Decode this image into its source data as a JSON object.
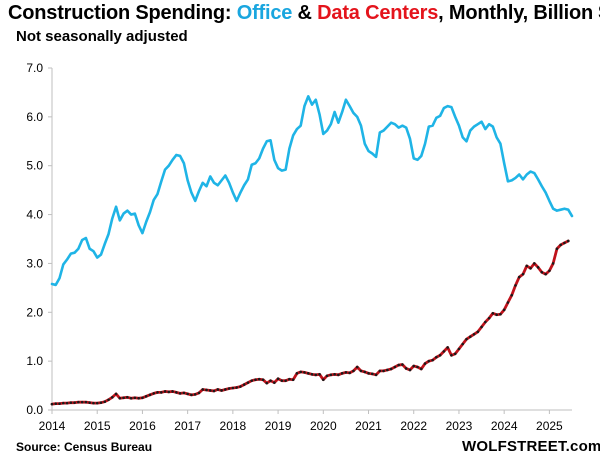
{
  "header": {
    "title_prefix": "Construction Spending: ",
    "office": "Office",
    "amp": " & ",
    "datacenters": "Data Centers",
    "title_suffix": ", Monthly, Billion $",
    "subtitle": "Not seasonally adjusted"
  },
  "footer": {
    "source": "Source: Census Bureau",
    "brand": "WOLFSTREET.com"
  },
  "colors": {
    "office": "#1fb4e6",
    "datacenters": "#c0121b",
    "datacenters_dots": "#1a1a1a",
    "axis": "#bfbfbf",
    "title_office": "#1aa6df",
    "title_datacenters": "#e4141c"
  },
  "chart_data": {
    "type": "line",
    "title": "Construction Spending: Office & Data Centers, Monthly, Billion $",
    "subtitle": "Not seasonally adjusted",
    "xlabel": "",
    "ylabel": "",
    "xlim": [
      2014.0,
      2025.5
    ],
    "ylim": [
      0.0,
      7.0
    ],
    "grid": false,
    "y_ticks": [
      "0.0",
      "1.0",
      "2.0",
      "3.0",
      "4.0",
      "5.0",
      "6.0",
      "7.0"
    ],
    "x_ticks": [
      "2014",
      "2015",
      "2016",
      "2017",
      "2018",
      "2019",
      "2020",
      "2021",
      "2022",
      "2023",
      "2024",
      "2025"
    ],
    "series": [
      {
        "name": "Office",
        "points": [
          [
            2014.0,
            2.58
          ],
          [
            2014.083,
            2.56
          ],
          [
            2014.167,
            2.7
          ],
          [
            2014.25,
            2.98
          ],
          [
            2014.333,
            3.08
          ],
          [
            2014.417,
            3.2
          ],
          [
            2014.5,
            3.22
          ],
          [
            2014.583,
            3.3
          ],
          [
            2014.667,
            3.48
          ],
          [
            2014.75,
            3.52
          ],
          [
            2014.833,
            3.3
          ],
          [
            2014.917,
            3.25
          ],
          [
            2015.0,
            3.12
          ],
          [
            2015.083,
            3.18
          ],
          [
            2015.167,
            3.4
          ],
          [
            2015.25,
            3.6
          ],
          [
            2015.333,
            3.92
          ],
          [
            2015.417,
            4.16
          ],
          [
            2015.5,
            3.88
          ],
          [
            2015.583,
            4.02
          ],
          [
            2015.667,
            4.08
          ],
          [
            2015.75,
            4.0
          ],
          [
            2015.833,
            4.02
          ],
          [
            2015.917,
            3.78
          ],
          [
            2016.0,
            3.62
          ],
          [
            2016.083,
            3.85
          ],
          [
            2016.167,
            4.05
          ],
          [
            2016.25,
            4.3
          ],
          [
            2016.333,
            4.42
          ],
          [
            2016.417,
            4.68
          ],
          [
            2016.5,
            4.92
          ],
          [
            2016.583,
            5.0
          ],
          [
            2016.667,
            5.12
          ],
          [
            2016.75,
            5.22
          ],
          [
            2016.833,
            5.2
          ],
          [
            2016.917,
            5.05
          ],
          [
            2017.0,
            4.7
          ],
          [
            2017.083,
            4.45
          ],
          [
            2017.167,
            4.28
          ],
          [
            2017.25,
            4.48
          ],
          [
            2017.333,
            4.65
          ],
          [
            2017.417,
            4.58
          ],
          [
            2017.5,
            4.78
          ],
          [
            2017.583,
            4.65
          ],
          [
            2017.667,
            4.6
          ],
          [
            2017.75,
            4.7
          ],
          [
            2017.833,
            4.8
          ],
          [
            2017.917,
            4.65
          ],
          [
            2018.0,
            4.45
          ],
          [
            2018.083,
            4.28
          ],
          [
            2018.167,
            4.45
          ],
          [
            2018.25,
            4.6
          ],
          [
            2018.333,
            4.72
          ],
          [
            2018.417,
            5.02
          ],
          [
            2018.5,
            5.05
          ],
          [
            2018.583,
            5.15
          ],
          [
            2018.667,
            5.35
          ],
          [
            2018.75,
            5.5
          ],
          [
            2018.833,
            5.52
          ],
          [
            2018.917,
            5.12
          ],
          [
            2019.0,
            4.95
          ],
          [
            2019.083,
            4.9
          ],
          [
            2019.167,
            4.92
          ],
          [
            2019.25,
            5.35
          ],
          [
            2019.333,
            5.62
          ],
          [
            2019.417,
            5.75
          ],
          [
            2019.5,
            5.82
          ],
          [
            2019.583,
            6.22
          ],
          [
            2019.667,
            6.42
          ],
          [
            2019.75,
            6.25
          ],
          [
            2019.833,
            6.35
          ],
          [
            2019.917,
            6.05
          ],
          [
            2020.0,
            5.65
          ],
          [
            2020.083,
            5.72
          ],
          [
            2020.167,
            5.85
          ],
          [
            2020.25,
            6.1
          ],
          [
            2020.333,
            5.88
          ],
          [
            2020.417,
            6.1
          ],
          [
            2020.5,
            6.35
          ],
          [
            2020.583,
            6.22
          ],
          [
            2020.667,
            6.08
          ],
          [
            2020.75,
            6.0
          ],
          [
            2020.833,
            5.82
          ],
          [
            2020.917,
            5.45
          ],
          [
            2021.0,
            5.3
          ],
          [
            2021.083,
            5.25
          ],
          [
            2021.167,
            5.18
          ],
          [
            2021.25,
            5.68
          ],
          [
            2021.333,
            5.72
          ],
          [
            2021.417,
            5.8
          ],
          [
            2021.5,
            5.88
          ],
          [
            2021.583,
            5.85
          ],
          [
            2021.667,
            5.78
          ],
          [
            2021.75,
            5.82
          ],
          [
            2021.833,
            5.78
          ],
          [
            2021.917,
            5.55
          ],
          [
            2022.0,
            5.15
          ],
          [
            2022.083,
            5.12
          ],
          [
            2022.167,
            5.2
          ],
          [
            2022.25,
            5.45
          ],
          [
            2022.333,
            5.8
          ],
          [
            2022.417,
            5.82
          ],
          [
            2022.5,
            5.98
          ],
          [
            2022.583,
            6.02
          ],
          [
            2022.667,
            6.18
          ],
          [
            2022.75,
            6.22
          ],
          [
            2022.833,
            6.2
          ],
          [
            2022.917,
            6.0
          ],
          [
            2023.0,
            5.82
          ],
          [
            2023.083,
            5.58
          ],
          [
            2023.167,
            5.5
          ],
          [
            2023.25,
            5.72
          ],
          [
            2023.333,
            5.8
          ],
          [
            2023.417,
            5.85
          ],
          [
            2023.5,
            5.9
          ],
          [
            2023.583,
            5.75
          ],
          [
            2023.667,
            5.85
          ],
          [
            2023.75,
            5.8
          ],
          [
            2023.833,
            5.58
          ],
          [
            2023.917,
            5.45
          ],
          [
            2024.0,
            5.05
          ],
          [
            2024.083,
            4.68
          ],
          [
            2024.167,
            4.7
          ],
          [
            2024.25,
            4.75
          ],
          [
            2024.333,
            4.82
          ],
          [
            2024.417,
            4.72
          ],
          [
            2024.5,
            4.82
          ],
          [
            2024.583,
            4.88
          ],
          [
            2024.667,
            4.85
          ],
          [
            2024.75,
            4.72
          ],
          [
            2024.833,
            4.58
          ],
          [
            2024.917,
            4.45
          ],
          [
            2025.0,
            4.28
          ],
          [
            2025.083,
            4.12
          ],
          [
            2025.167,
            4.08
          ],
          [
            2025.25,
            4.1
          ],
          [
            2025.333,
            4.12
          ],
          [
            2025.417,
            4.1
          ],
          [
            2025.5,
            3.97
          ]
        ]
      },
      {
        "name": "Data Centers",
        "points": [
          [
            2014.0,
            0.12
          ],
          [
            2014.083,
            0.13
          ],
          [
            2014.167,
            0.13
          ],
          [
            2014.25,
            0.14
          ],
          [
            2014.333,
            0.14
          ],
          [
            2014.417,
            0.15
          ],
          [
            2014.5,
            0.15
          ],
          [
            2014.583,
            0.16
          ],
          [
            2014.667,
            0.16
          ],
          [
            2014.75,
            0.16
          ],
          [
            2014.833,
            0.15
          ],
          [
            2014.917,
            0.14
          ],
          [
            2015.0,
            0.14
          ],
          [
            2015.083,
            0.15
          ],
          [
            2015.167,
            0.17
          ],
          [
            2015.25,
            0.21
          ],
          [
            2015.333,
            0.26
          ],
          [
            2015.417,
            0.33
          ],
          [
            2015.5,
            0.24
          ],
          [
            2015.583,
            0.25
          ],
          [
            2015.667,
            0.26
          ],
          [
            2015.75,
            0.24
          ],
          [
            2015.833,
            0.25
          ],
          [
            2015.917,
            0.24
          ],
          [
            2016.0,
            0.25
          ],
          [
            2016.083,
            0.28
          ],
          [
            2016.167,
            0.31
          ],
          [
            2016.25,
            0.34
          ],
          [
            2016.333,
            0.36
          ],
          [
            2016.417,
            0.36
          ],
          [
            2016.5,
            0.38
          ],
          [
            2016.583,
            0.37
          ],
          [
            2016.667,
            0.38
          ],
          [
            2016.75,
            0.36
          ],
          [
            2016.833,
            0.34
          ],
          [
            2016.917,
            0.35
          ],
          [
            2017.0,
            0.33
          ],
          [
            2017.083,
            0.31
          ],
          [
            2017.167,
            0.32
          ],
          [
            2017.25,
            0.35
          ],
          [
            2017.333,
            0.42
          ],
          [
            2017.417,
            0.41
          ],
          [
            2017.5,
            0.4
          ],
          [
            2017.583,
            0.39
          ],
          [
            2017.667,
            0.42
          ],
          [
            2017.75,
            0.4
          ],
          [
            2017.833,
            0.42
          ],
          [
            2017.917,
            0.44
          ],
          [
            2018.0,
            0.45
          ],
          [
            2018.083,
            0.46
          ],
          [
            2018.167,
            0.48
          ],
          [
            2018.25,
            0.52
          ],
          [
            2018.333,
            0.56
          ],
          [
            2018.417,
            0.6
          ],
          [
            2018.5,
            0.62
          ],
          [
            2018.583,
            0.63
          ],
          [
            2018.667,
            0.62
          ],
          [
            2018.75,
            0.55
          ],
          [
            2018.833,
            0.6
          ],
          [
            2018.917,
            0.56
          ],
          [
            2019.0,
            0.64
          ],
          [
            2019.083,
            0.6
          ],
          [
            2019.167,
            0.6
          ],
          [
            2019.25,
            0.63
          ],
          [
            2019.333,
            0.62
          ],
          [
            2019.417,
            0.75
          ],
          [
            2019.5,
            0.78
          ],
          [
            2019.583,
            0.77
          ],
          [
            2019.667,
            0.75
          ],
          [
            2019.75,
            0.73
          ],
          [
            2019.833,
            0.72
          ],
          [
            2019.917,
            0.73
          ],
          [
            2020.0,
            0.62
          ],
          [
            2020.083,
            0.7
          ],
          [
            2020.167,
            0.72
          ],
          [
            2020.25,
            0.73
          ],
          [
            2020.333,
            0.72
          ],
          [
            2020.417,
            0.75
          ],
          [
            2020.5,
            0.77
          ],
          [
            2020.583,
            0.76
          ],
          [
            2020.667,
            0.8
          ],
          [
            2020.75,
            0.88
          ],
          [
            2020.833,
            0.8
          ],
          [
            2020.917,
            0.78
          ],
          [
            2021.0,
            0.75
          ],
          [
            2021.083,
            0.74
          ],
          [
            2021.167,
            0.72
          ],
          [
            2021.25,
            0.8
          ],
          [
            2021.333,
            0.8
          ],
          [
            2021.417,
            0.82
          ],
          [
            2021.5,
            0.84
          ],
          [
            2021.583,
            0.88
          ],
          [
            2021.667,
            0.92
          ],
          [
            2021.75,
            0.93
          ],
          [
            2021.833,
            0.85
          ],
          [
            2021.917,
            0.82
          ],
          [
            2022.0,
            0.9
          ],
          [
            2022.083,
            0.88
          ],
          [
            2022.167,
            0.84
          ],
          [
            2022.25,
            0.95
          ],
          [
            2022.333,
            1.0
          ],
          [
            2022.417,
            1.02
          ],
          [
            2022.5,
            1.08
          ],
          [
            2022.583,
            1.12
          ],
          [
            2022.667,
            1.2
          ],
          [
            2022.75,
            1.28
          ],
          [
            2022.833,
            1.12
          ],
          [
            2022.917,
            1.15
          ],
          [
            2023.0,
            1.25
          ],
          [
            2023.083,
            1.35
          ],
          [
            2023.167,
            1.45
          ],
          [
            2023.25,
            1.5
          ],
          [
            2023.333,
            1.55
          ],
          [
            2023.417,
            1.6
          ],
          [
            2023.5,
            1.7
          ],
          [
            2023.583,
            1.8
          ],
          [
            2023.667,
            1.88
          ],
          [
            2023.75,
            1.98
          ],
          [
            2023.833,
            1.95
          ],
          [
            2023.917,
            1.96
          ],
          [
            2024.0,
            2.05
          ],
          [
            2024.083,
            2.2
          ],
          [
            2024.167,
            2.35
          ],
          [
            2024.25,
            2.55
          ],
          [
            2024.333,
            2.72
          ],
          [
            2024.417,
            2.78
          ],
          [
            2024.5,
            2.95
          ],
          [
            2024.583,
            2.9
          ],
          [
            2024.667,
            3.0
          ],
          [
            2024.75,
            2.92
          ],
          [
            2024.833,
            2.82
          ],
          [
            2024.917,
            2.78
          ],
          [
            2025.0,
            2.85
          ],
          [
            2025.083,
            3.0
          ],
          [
            2025.167,
            3.3
          ],
          [
            2025.25,
            3.38
          ],
          [
            2025.333,
            3.42
          ],
          [
            2025.417,
            3.46
          ]
        ]
      }
    ]
  }
}
